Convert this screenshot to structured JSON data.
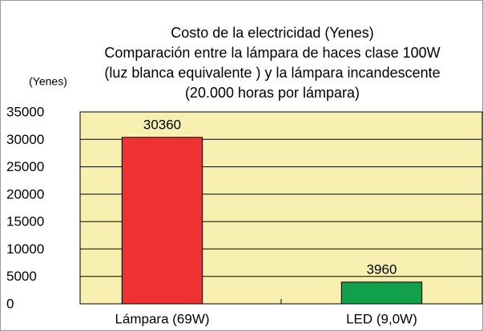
{
  "chart_data": {
    "type": "bar",
    "title": [
      "Costo de la electricidad (Yenes)",
      "Comparación entre la lámpara de haces clase 100W",
      "(luz blanca equivalente ) y la lámpara incandescente",
      "(20.000 horas por lámpara)"
    ],
    "y_label": "(Yenes)",
    "categories": [
      "Lámpara (69W)",
      "LED (9,0W)"
    ],
    "values": [
      30360,
      3960
    ],
    "colors": [
      "#ee3232",
      "#12a04a"
    ],
    "ylim": [
      0,
      35000
    ],
    "yticks": [
      0,
      5000,
      10000,
      15000,
      20000,
      25000,
      30000,
      35000
    ],
    "grid": true,
    "plot_background": "#f8f0b0"
  }
}
